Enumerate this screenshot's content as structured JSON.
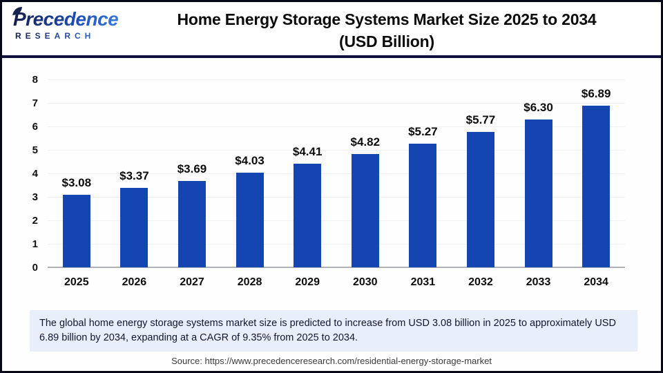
{
  "header": {
    "logo_line1": "Precedence",
    "logo_line2": "RESEARCH",
    "title_line1": "Home Energy Storage Systems Market Size 2025 to 2034",
    "title_line2": "(USD Billion)"
  },
  "chart_data": {
    "type": "bar",
    "title": "Home Energy Storage Systems Market Size 2025 to 2034 (USD Billion)",
    "categories": [
      "2025",
      "2026",
      "2027",
      "2028",
      "2029",
      "2030",
      "2031",
      "2032",
      "2033",
      "2034"
    ],
    "values": [
      3.08,
      3.37,
      3.69,
      4.03,
      4.41,
      4.82,
      5.27,
      5.77,
      6.3,
      6.89
    ],
    "value_labels": [
      "$3.08",
      "$3.37",
      "$3.69",
      "$4.03",
      "$4.41",
      "$4.82",
      "$5.27",
      "$5.77",
      "$6.30",
      "$6.89"
    ],
    "xlabel": "",
    "ylabel": "",
    "ylim": [
      0,
      8
    ],
    "yticks": [
      0,
      1,
      2,
      3,
      4,
      5,
      6,
      7,
      8
    ],
    "grid": true,
    "legend": "none",
    "bar_color": "#1545b0"
  },
  "summary": {
    "text": "The global home energy storage systems market size is predicted to increase from USD 3.08 billion in 2025 to approximately USD 6.89 billion by 2034, expanding at a CAGR of 9.35% from 2025 to 2034."
  },
  "source": {
    "text": "Source: https://www.precedenceresearch.com/residential-energy-storage-market"
  }
}
